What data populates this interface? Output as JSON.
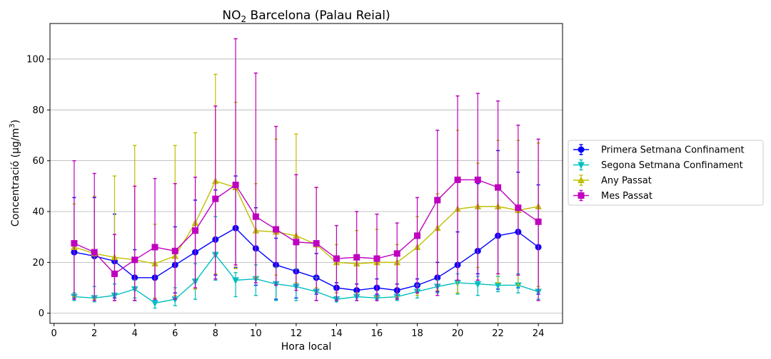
{
  "chart_data": {
    "type": "line",
    "title": "NO",
    "title_sub": "2",
    "title_rest": " Barcelona (Palau Reial)",
    "xlabel": "Hora local",
    "ylabel_main": "Concentració (μg/m",
    "ylabel_sup": "3",
    "ylabel_end": ")",
    "xlim": [
      -0.2,
      25.2
    ],
    "ylim": [
      -4,
      114
    ],
    "xticks": [
      0,
      2,
      4,
      6,
      8,
      10,
      12,
      14,
      16,
      18,
      20,
      22,
      24
    ],
    "yticks": [
      0,
      20,
      40,
      60,
      80,
      100
    ],
    "grid": "horizontal",
    "legend_position": "right",
    "x": [
      1,
      2,
      3,
      4,
      5,
      6,
      7,
      8,
      9,
      10,
      11,
      12,
      13,
      14,
      15,
      16,
      17,
      18,
      19,
      20,
      21,
      22,
      23,
      24
    ],
    "series": [
      {
        "name": "Primera Setmana Confinament",
        "color": "#0000ff",
        "marker": "circle",
        "values": [
          24,
          22.5,
          20.5,
          14,
          14,
          19,
          24,
          29,
          33.5,
          25.5,
          19,
          16.5,
          14,
          10,
          9,
          10,
          9,
          11,
          14,
          19,
          24.5,
          30.5,
          32,
          26
        ],
        "upper": [
          45.5,
          45.5,
          39,
          25,
          27,
          34,
          44.5,
          48.5,
          54,
          41.5,
          29.5,
          27,
          23.5,
          12,
          11.5,
          13.5,
          11.5,
          13.5,
          20,
          32,
          51,
          64,
          55.5,
          50.5
        ],
        "lower": [
          6,
          6,
          6,
          5,
          5,
          8,
          9.5,
          15,
          18,
          11,
          5.5,
          6,
          7.5,
          8,
          7,
          7.5,
          6,
          8.5,
          8.5,
          8,
          15.5,
          9.5,
          10,
          7.5
        ]
      },
      {
        "name": "Segona Setmana Confinament",
        "color": "#00bfbf",
        "marker": "triangle-down",
        "values": [
          6.5,
          6,
          7,
          9.5,
          4,
          5.5,
          12.5,
          23,
          13,
          13.5,
          11.5,
          10.5,
          8.5,
          5.5,
          6.5,
          6,
          6.5,
          8.5,
          10.5,
          12,
          11.5,
          11,
          11,
          8.5
        ],
        "upper": [
          8,
          10.5,
          11.5,
          13,
          6,
          10,
          19.5,
          38,
          16,
          19,
          18,
          17.5,
          14,
          6.5,
          7,
          7,
          7.5,
          11,
          13,
          15.5,
          14.5,
          14.5,
          15.5,
          10.5
        ],
        "lower": [
          5,
          4.5,
          5,
          6,
          2,
          3,
          5.5,
          13,
          6.5,
          7,
          5,
          5,
          5,
          4.5,
          5,
          5.5,
          5,
          6,
          8,
          7.5,
          7,
          8.5,
          8,
          5.5
        ]
      },
      {
        "name": "Any Passat",
        "color": "#bfbf00",
        "marker": "triangle-up",
        "values": [
          26,
          23.5,
          22,
          21,
          19.5,
          22.5,
          35.5,
          52,
          49.5,
          32.5,
          32,
          30.5,
          27,
          20,
          19.5,
          20,
          20,
          26,
          33.5,
          41,
          42,
          42,
          40.5,
          42
        ],
        "upper": [
          43,
          46,
          54,
          66,
          35,
          66,
          71,
          94,
          83,
          51,
          68.5,
          70.5,
          49.5,
          27,
          32.5,
          33,
          27,
          38,
          47,
          72,
          59,
          68,
          68,
          67
        ],
        "lower": [
          6.5,
          5.5,
          5,
          5,
          6,
          7,
          9.5,
          15.5,
          17.5,
          14,
          15,
          12,
          10,
          8,
          8,
          6.5,
          6.5,
          7,
          9,
          8,
          18,
          12,
          11,
          10.5
        ]
      },
      {
        "name": "Mes Passat",
        "color": "#bf00bf",
        "marker": "square",
        "values": [
          27.5,
          24,
          15.5,
          21,
          26,
          24.5,
          32.5,
          45,
          50.5,
          38,
          33,
          28,
          27.5,
          21.5,
          22,
          21.5,
          23.5,
          30.5,
          44.5,
          52.5,
          52.5,
          49.5,
          41.5,
          36
        ],
        "upper": [
          60,
          55,
          31,
          50,
          53,
          51,
          53.5,
          81.5,
          108,
          94.5,
          73.5,
          54.5,
          49.5,
          34.5,
          40,
          39,
          35.5,
          45.5,
          72,
          85.5,
          86.5,
          83.5,
          74,
          68.5
        ],
        "lower": [
          5.5,
          5,
          5,
          5,
          5.5,
          5.5,
          10,
          13.5,
          19,
          12,
          11,
          9,
          5,
          5,
          5,
          5,
          5.5,
          8,
          7,
          13,
          13,
          15.5,
          15,
          5
        ]
      }
    ]
  }
}
